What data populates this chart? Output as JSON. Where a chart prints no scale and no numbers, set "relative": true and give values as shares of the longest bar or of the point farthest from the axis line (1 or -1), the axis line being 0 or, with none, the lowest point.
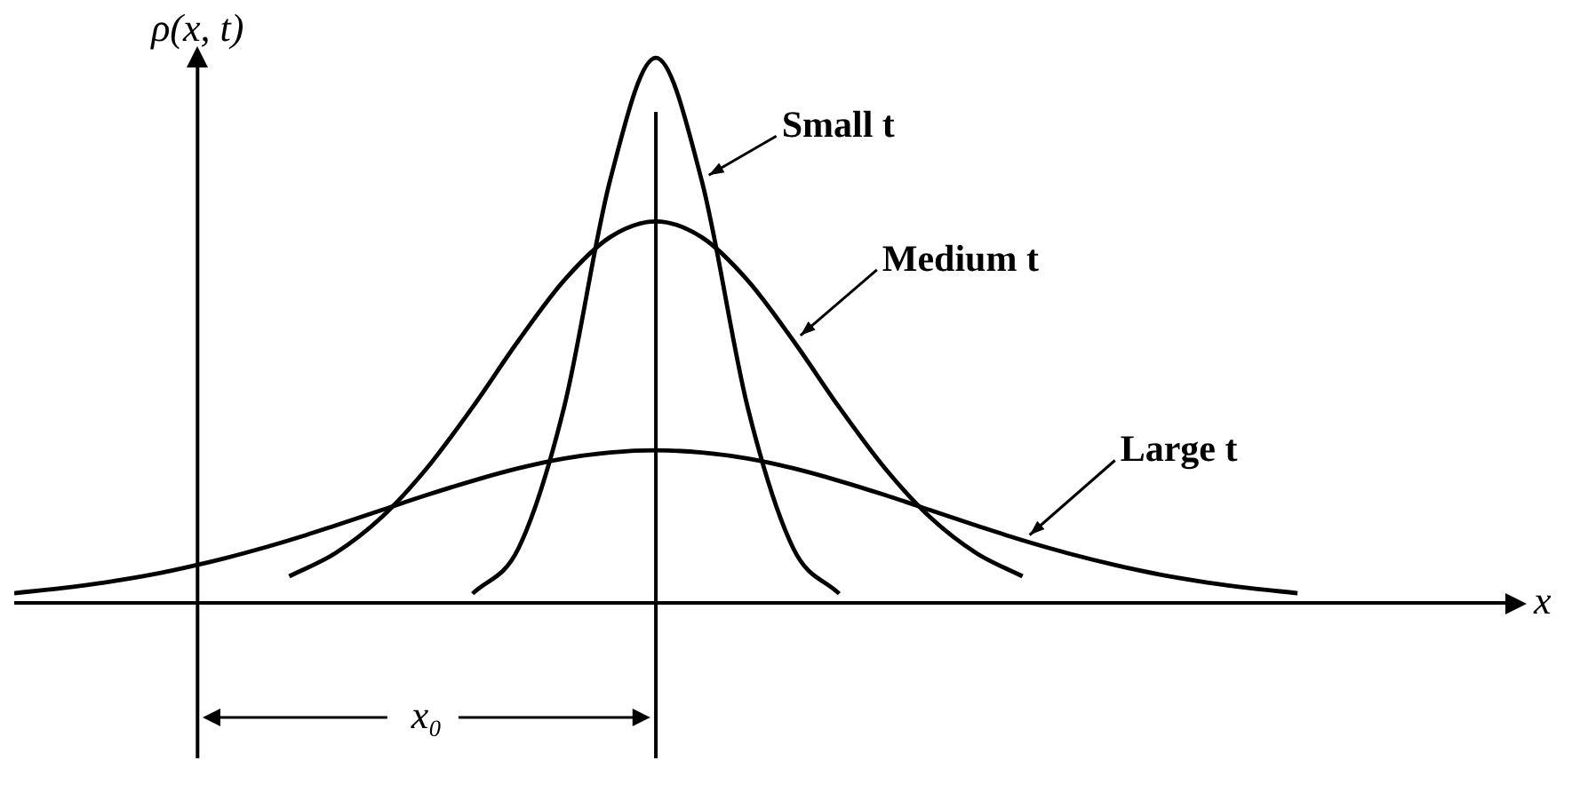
{
  "chart_data": {
    "type": "line",
    "relative": true,
    "ylabel": "ρ(x, t)",
    "xlabel": "x",
    "legend": false,
    "tick_labels": false,
    "marker": "none",
    "line_style": "solid",
    "categories": [
      null,
      null,
      null,
      null,
      null,
      null,
      null,
      null,
      null,
      null,
      null,
      null,
      null,
      null,
      null,
      null,
      null,
      null,
      null,
      null,
      null,
      null,
      null,
      null,
      null,
      null,
      null,
      null,
      null,
      null,
      null,
      null,
      null,
      null
    ],
    "series": [
      {
        "name": "Small t",
        "color": "#000000",
        "values": [
          null,
          null,
          null,
          null,
          null,
          null,
          null,
          null,
          null,
          null,
          0.017,
          0.1,
          0.36,
          0.775,
          1,
          0.775,
          0.36,
          0.1,
          0.017,
          null,
          null,
          null,
          null,
          null,
          null,
          null,
          null,
          null,
          null,
          null,
          null,
          null,
          null,
          null
        ]
      },
      {
        "name": "Medium t",
        "color": "#000000",
        "values": [
          null,
          null,
          null,
          null,
          null,
          null,
          0.049,
          0.091,
          0.156,
          0.247,
          0.359,
          0.481,
          0.592,
          0.671,
          0.7,
          0.671,
          0.592,
          0.481,
          0.359,
          0.247,
          0.156,
          0.091,
          0.049,
          null,
          null,
          null,
          null,
          null,
          null,
          null,
          null,
          null,
          null,
          null
        ]
      },
      {
        "name": "Large t",
        "color": "#000000",
        "values": [
          0.018,
          0.027,
          0.038,
          0.052,
          0.07,
          0.091,
          0.115,
          0.142,
          0.17,
          0.198,
          0.224,
          0.247,
          0.265,
          0.276,
          0.28,
          0.276,
          0.265,
          0.247,
          0.224,
          0.198,
          0.17,
          0.142,
          0.115,
          0.091,
          0.07,
          0.052,
          0.038,
          0.027,
          0.018,
          null,
          null,
          null,
          null,
          null
        ]
      }
    ],
    "annotations": [
      "x₀"
    ]
  }
}
